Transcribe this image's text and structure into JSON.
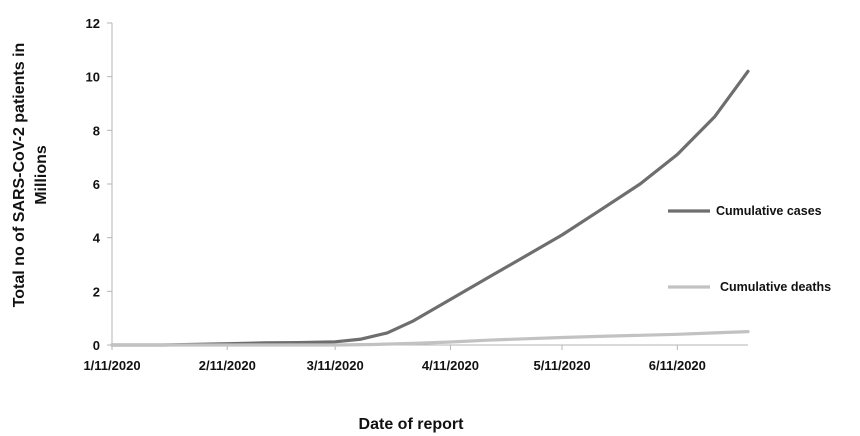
{
  "chart_data": {
    "type": "line",
    "xlabel": "Date of report",
    "ylabel_lines": [
      "Total no of SARS-CoV-2 patients in",
      "Millions"
    ],
    "x_tick_labels": [
      "1/11/2020",
      "2/11/2020",
      "3/11/2020",
      "4/11/2020",
      "5/11/2020",
      "6/11/2020"
    ],
    "x_range": [
      "2020-01-11",
      "2020-06-30"
    ],
    "y_ticks": [
      "0",
      "2",
      "4",
      "6",
      "8",
      "10",
      "12"
    ],
    "ylim": [
      0,
      12
    ],
    "legend_position": "right",
    "grid": false,
    "series": [
      {
        "name": "Cumulative cases",
        "color": "#6e6e6e",
        "points": [
          [
            "2020-01-11",
            0.0
          ],
          [
            "2020-01-25",
            0.0
          ],
          [
            "2020-02-01",
            0.02
          ],
          [
            "2020-02-11",
            0.05
          ],
          [
            "2020-02-21",
            0.08
          ],
          [
            "2020-03-01",
            0.09
          ],
          [
            "2020-03-11",
            0.12
          ],
          [
            "2020-03-18",
            0.22
          ],
          [
            "2020-03-25",
            0.45
          ],
          [
            "2020-04-01",
            0.9
          ],
          [
            "2020-04-11",
            1.7
          ],
          [
            "2020-04-21",
            2.5
          ],
          [
            "2020-05-01",
            3.3
          ],
          [
            "2020-05-11",
            4.1
          ],
          [
            "2020-05-21",
            5.0
          ],
          [
            "2020-06-01",
            6.0
          ],
          [
            "2020-06-11",
            7.1
          ],
          [
            "2020-06-21",
            8.5
          ],
          [
            "2020-06-30",
            10.2
          ]
        ]
      },
      {
        "name": "Cumulative deaths",
        "color": "#c2c2c2",
        "points": [
          [
            "2020-01-11",
            0.0
          ],
          [
            "2020-02-11",
            0.0
          ],
          [
            "2020-03-11",
            0.0
          ],
          [
            "2020-03-21",
            0.02
          ],
          [
            "2020-04-01",
            0.06
          ],
          [
            "2020-04-11",
            0.11
          ],
          [
            "2020-04-21",
            0.18
          ],
          [
            "2020-05-01",
            0.23
          ],
          [
            "2020-05-11",
            0.28
          ],
          [
            "2020-05-21",
            0.32
          ],
          [
            "2020-06-01",
            0.36
          ],
          [
            "2020-06-11",
            0.4
          ],
          [
            "2020-06-21",
            0.45
          ],
          [
            "2020-06-30",
            0.5
          ]
        ]
      }
    ]
  }
}
